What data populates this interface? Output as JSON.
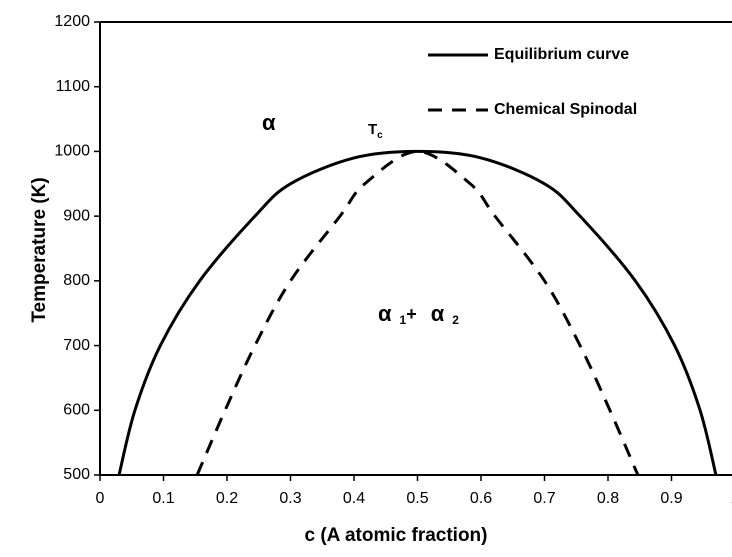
{
  "chart_data": {
    "type": "line",
    "xlabel": "c (A atomic fraction)",
    "ylabel": "Temperature (K)",
    "xlim": [
      0,
      1
    ],
    "ylim": [
      500,
      1200
    ],
    "xticks": [
      0,
      0.1,
      0.2,
      0.3,
      0.4,
      0.5,
      0.6,
      0.7,
      0.8,
      0.9,
      1
    ],
    "yticks": [
      500,
      600,
      700,
      800,
      900,
      1000,
      1100,
      1200
    ],
    "legend": "upper right",
    "series": [
      {
        "name": "Equilibrium curve",
        "color": "#000000",
        "dash": "solid",
        "x": [
          0.03,
          0.055,
          0.095,
          0.157,
          0.244,
          0.3,
          0.4,
          0.5,
          0.6,
          0.7,
          0.756,
          0.843,
          0.905,
          0.945,
          0.97
        ],
        "values": [
          500,
          600,
          700,
          800,
          900,
          950,
          990,
          1000,
          990,
          950,
          900,
          800,
          700,
          600,
          500
        ]
      },
      {
        "name": "Chemical Spinodal",
        "color": "#000000",
        "dash": "dashed",
        "x": [
          0.153,
          0.197,
          0.244,
          0.3,
          0.378,
          0.417,
          0.5,
          0.583,
          0.622,
          0.7,
          0.756,
          0.803,
          0.847
        ],
        "values": [
          500,
          600,
          700,
          800,
          900,
          950,
          1000,
          950,
          900,
          800,
          700,
          600,
          500
        ]
      }
    ],
    "annotations": {
      "alpha": "α",
      "tc": "T",
      "tc_sub": "c",
      "phase1": "α",
      "phase1_sub": "1",
      "plus": "+",
      "phase2": "α",
      "phase2_sub": "2"
    }
  }
}
